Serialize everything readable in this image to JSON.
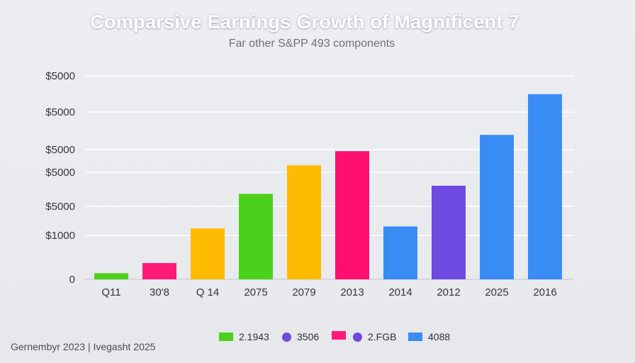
{
  "title": "Comparsive Earnings Growth of Magnificent 7",
  "subtitle": "Far other S&PP 493 components",
  "footer": "Gernembyr 2023 | Ivegasht 2025",
  "chart_data": {
    "type": "bar",
    "y_tick_labels": [
      "$5000",
      "$5000",
      "$5000",
      "$5000",
      "$5000",
      "$1000",
      "0"
    ],
    "categories": [
      "Q11",
      "30'8",
      "Q 14",
      "2075",
      "2079",
      "2013",
      "2014",
      "2012",
      "2025",
      "2016"
    ],
    "values": [
      0.03,
      0.08,
      0.25,
      0.42,
      0.56,
      0.63,
      0.26,
      0.46,
      0.71,
      0.91
    ],
    "bar_colors": [
      "#4cd11a",
      "#ff1a78",
      "#ffbb00",
      "#4cd11a",
      "#ffbb00",
      "#ff0f6e",
      "#3a8cf5",
      "#6d4ae0",
      "#3a8cf5",
      "#3a8cf5"
    ],
    "legend": [
      {
        "label": "2.1943",
        "color": "#4cd11a",
        "shape": "square"
      },
      {
        "label": "3506",
        "color": "#6d4ae0",
        "shape": "circle"
      },
      {
        "label": "",
        "color": "#ff1a78",
        "shape": "square"
      },
      {
        "label": "2.FGB",
        "color": "#6d4ae0",
        "shape": "circle"
      },
      {
        "label": "4088",
        "color": "#3a8cf5",
        "shape": "square"
      }
    ],
    "grid": true
  }
}
